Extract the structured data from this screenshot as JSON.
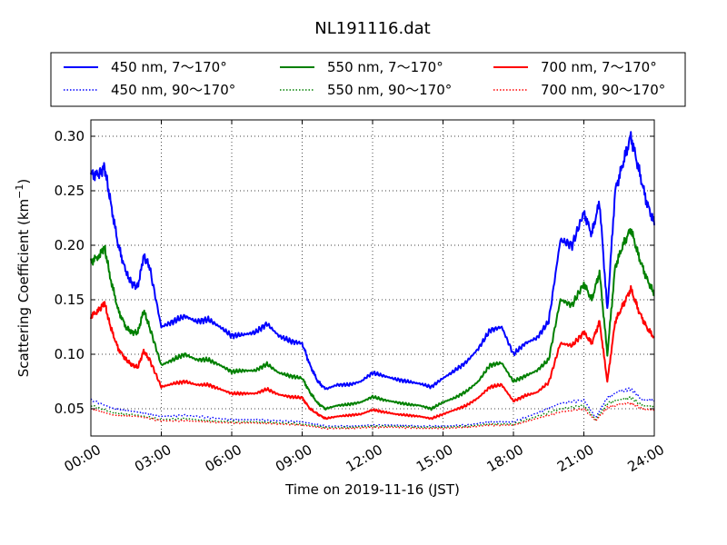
{
  "chart_data": {
    "type": "line",
    "title": "NL191116.dat",
    "xlabel": "Time on 2019-11-16 (JST)",
    "ylabel": "Scattering Coefficient (km",
    "ylabel_unit_exp": "−1",
    "ylabel_close": ")",
    "xlim": [
      "00:00",
      "24:00"
    ],
    "ylim": [
      0.025,
      0.315
    ],
    "grid": true,
    "legend_placement": "top",
    "x_ticks": [
      "00:00",
      "03:00",
      "06:00",
      "09:00",
      "12:00",
      "15:00",
      "18:00",
      "21:00",
      "24:00"
    ],
    "y_ticks": [
      "0.05",
      "0.10",
      "0.15",
      "0.20",
      "0.25",
      "0.30"
    ],
    "y_tick_values": [
      0.05,
      0.1,
      0.15,
      0.2,
      0.25,
      0.3
    ],
    "series": [
      {
        "name": "450 nm, 7～170°",
        "color": "#0000ff",
        "style": "solid",
        "x": [
          "00:00",
          "00:20",
          "00:35",
          "00:50",
          "01:10",
          "01:30",
          "01:45",
          "02:00",
          "02:15",
          "02:30",
          "03:00",
          "03:30",
          "04:00",
          "04:30",
          "05:00",
          "05:30",
          "06:00",
          "06:30",
          "07:00",
          "07:30",
          "08:00",
          "08:30",
          "09:00",
          "09:20",
          "09:40",
          "10:00",
          "10:30",
          "11:00",
          "11:30",
          "12:00",
          "12:30",
          "13:00",
          "13:30",
          "14:00",
          "14:30",
          "15:00",
          "15:30",
          "16:00",
          "16:30",
          "17:00",
          "17:30",
          "18:00",
          "18:30",
          "19:00",
          "19:30",
          "20:00",
          "20:30",
          "21:00",
          "21:20",
          "21:40",
          "22:00",
          "22:20",
          "22:40",
          "23:00",
          "23:20",
          "23:40",
          "24:00"
        ],
        "y": [
          0.265,
          0.265,
          0.272,
          0.24,
          0.2,
          0.175,
          0.165,
          0.162,
          0.19,
          0.18,
          0.125,
          0.13,
          0.135,
          0.13,
          0.132,
          0.125,
          0.117,
          0.118,
          0.12,
          0.128,
          0.117,
          0.112,
          0.11,
          0.09,
          0.075,
          0.068,
          0.072,
          0.072,
          0.075,
          0.083,
          0.08,
          0.077,
          0.075,
          0.073,
          0.07,
          0.078,
          0.085,
          0.093,
          0.105,
          0.122,
          0.125,
          0.1,
          0.11,
          0.115,
          0.13,
          0.205,
          0.2,
          0.23,
          0.21,
          0.24,
          0.14,
          0.25,
          0.275,
          0.3,
          0.27,
          0.24,
          0.22
        ]
      },
      {
        "name": "450 nm, 90～170°",
        "color": "#0000ff",
        "style": "dotted",
        "x": [
          "00:00",
          "01:00",
          "02:00",
          "03:00",
          "04:00",
          "05:00",
          "06:00",
          "07:00",
          "08:00",
          "09:00",
          "10:00",
          "11:00",
          "12:00",
          "13:00",
          "14:00",
          "15:00",
          "16:00",
          "17:00",
          "18:00",
          "19:00",
          "20:00",
          "21:00",
          "21:30",
          "22:00",
          "22:30",
          "23:00",
          "23:30",
          "24:00"
        ],
        "y": [
          0.058,
          0.05,
          0.047,
          0.043,
          0.044,
          0.042,
          0.04,
          0.04,
          0.039,
          0.038,
          0.034,
          0.034,
          0.035,
          0.035,
          0.034,
          0.034,
          0.035,
          0.038,
          0.038,
          0.046,
          0.055,
          0.058,
          0.042,
          0.06,
          0.066,
          0.068,
          0.058,
          0.058
        ]
      },
      {
        "name": "550 nm, 7～170°",
        "color": "#008000",
        "style": "solid",
        "x": [
          "00:00",
          "00:20",
          "00:35",
          "00:50",
          "01:10",
          "01:30",
          "01:45",
          "02:00",
          "02:15",
          "02:30",
          "03:00",
          "03:30",
          "04:00",
          "04:30",
          "05:00",
          "05:30",
          "06:00",
          "06:30",
          "07:00",
          "07:30",
          "08:00",
          "08:30",
          "09:00",
          "09:20",
          "09:40",
          "10:00",
          "10:30",
          "11:00",
          "11:30",
          "12:00",
          "12:30",
          "13:00",
          "13:30",
          "14:00",
          "14:30",
          "15:00",
          "15:30",
          "16:00",
          "16:30",
          "17:00",
          "17:30",
          "18:00",
          "18:30",
          "19:00",
          "19:30",
          "20:00",
          "20:30",
          "21:00",
          "21:20",
          "21:40",
          "22:00",
          "22:20",
          "22:40",
          "23:00",
          "23:20",
          "23:40",
          "24:00"
        ],
        "y": [
          0.185,
          0.19,
          0.198,
          0.17,
          0.14,
          0.125,
          0.12,
          0.12,
          0.14,
          0.125,
          0.09,
          0.095,
          0.1,
          0.095,
          0.095,
          0.09,
          0.084,
          0.085,
          0.085,
          0.091,
          0.083,
          0.08,
          0.078,
          0.065,
          0.055,
          0.05,
          0.053,
          0.054,
          0.056,
          0.061,
          0.058,
          0.056,
          0.054,
          0.053,
          0.05,
          0.056,
          0.06,
          0.066,
          0.075,
          0.09,
          0.092,
          0.075,
          0.08,
          0.085,
          0.095,
          0.15,
          0.145,
          0.165,
          0.15,
          0.175,
          0.1,
          0.18,
          0.2,
          0.215,
          0.19,
          0.17,
          0.155
        ]
      },
      {
        "name": "550 nm, 90～170°",
        "color": "#008000",
        "style": "dotted",
        "x": [
          "00:00",
          "01:00",
          "02:00",
          "03:00",
          "04:00",
          "05:00",
          "06:00",
          "07:00",
          "08:00",
          "09:00",
          "10:00",
          "11:00",
          "12:00",
          "13:00",
          "14:00",
          "15:00",
          "16:00",
          "17:00",
          "18:00",
          "19:00",
          "20:00",
          "21:00",
          "21:30",
          "22:00",
          "22:30",
          "23:00",
          "23:30",
          "24:00"
        ],
        "y": [
          0.053,
          0.046,
          0.044,
          0.04,
          0.041,
          0.039,
          0.038,
          0.038,
          0.037,
          0.036,
          0.033,
          0.033,
          0.034,
          0.034,
          0.033,
          0.033,
          0.034,
          0.036,
          0.036,
          0.043,
          0.05,
          0.053,
          0.04,
          0.055,
          0.058,
          0.06,
          0.053,
          0.052
        ]
      },
      {
        "name": "700 nm, 7～170°",
        "color": "#ff0000",
        "style": "solid",
        "x": [
          "00:00",
          "00:20",
          "00:35",
          "00:50",
          "01:10",
          "01:30",
          "01:45",
          "02:00",
          "02:15",
          "02:30",
          "03:00",
          "03:30",
          "04:00",
          "04:30",
          "05:00",
          "05:30",
          "06:00",
          "06:30",
          "07:00",
          "07:30",
          "08:00",
          "08:30",
          "09:00",
          "09:20",
          "09:40",
          "10:00",
          "10:30",
          "11:00",
          "11:30",
          "12:00",
          "12:30",
          "13:00",
          "13:30",
          "14:00",
          "14:30",
          "15:00",
          "15:30",
          "16:00",
          "16:30",
          "17:00",
          "17:30",
          "18:00",
          "18:30",
          "19:00",
          "19:30",
          "20:00",
          "20:30",
          "21:00",
          "21:20",
          "21:40",
          "22:00",
          "22:20",
          "22:40",
          "23:00",
          "23:20",
          "23:40",
          "24:00"
        ],
        "y": [
          0.135,
          0.14,
          0.147,
          0.125,
          0.105,
          0.095,
          0.09,
          0.088,
          0.103,
          0.095,
          0.07,
          0.073,
          0.075,
          0.072,
          0.072,
          0.068,
          0.064,
          0.064,
          0.064,
          0.068,
          0.063,
          0.061,
          0.06,
          0.05,
          0.045,
          0.041,
          0.043,
          0.044,
          0.045,
          0.049,
          0.047,
          0.045,
          0.044,
          0.043,
          0.041,
          0.045,
          0.049,
          0.053,
          0.06,
          0.07,
          0.072,
          0.057,
          0.062,
          0.065,
          0.074,
          0.11,
          0.108,
          0.12,
          0.11,
          0.13,
          0.075,
          0.13,
          0.145,
          0.16,
          0.14,
          0.125,
          0.115
        ]
      },
      {
        "name": "700 nm, 90～170°",
        "color": "#ff0000",
        "style": "dotted",
        "x": [
          "00:00",
          "01:00",
          "02:00",
          "03:00",
          "04:00",
          "05:00",
          "06:00",
          "07:00",
          "08:00",
          "09:00",
          "10:00",
          "11:00",
          "12:00",
          "13:00",
          "14:00",
          "15:00",
          "16:00",
          "17:00",
          "18:00",
          "19:00",
          "20:00",
          "21:00",
          "21:30",
          "22:00",
          "22:30",
          "23:00",
          "23:30",
          "24:00"
        ],
        "y": [
          0.05,
          0.044,
          0.043,
          0.039,
          0.039,
          0.038,
          0.037,
          0.037,
          0.036,
          0.035,
          0.032,
          0.032,
          0.033,
          0.033,
          0.032,
          0.032,
          0.033,
          0.035,
          0.035,
          0.041,
          0.047,
          0.05,
          0.039,
          0.051,
          0.054,
          0.055,
          0.05,
          0.049
        ]
      }
    ]
  }
}
